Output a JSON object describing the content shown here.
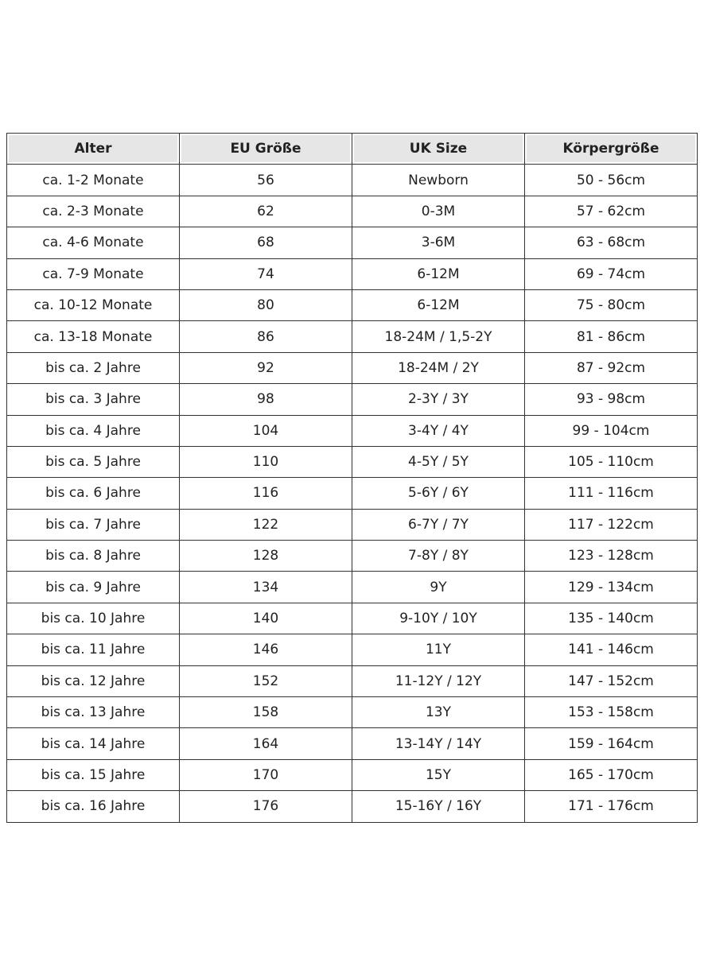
{
  "table": {
    "header": [
      "Alter",
      "EU Größe",
      "UK Size",
      "Körpergröße"
    ],
    "rows": [
      [
        "ca. 1-2 Monate",
        "56",
        "Newborn",
        "50 - 56cm"
      ],
      [
        "ca. 2-3 Monate",
        "62",
        "0-3M",
        "57 - 62cm"
      ],
      [
        "ca. 4-6 Monate",
        "68",
        "3-6M",
        "63 - 68cm"
      ],
      [
        "ca. 7-9 Monate",
        "74",
        "6-12M",
        "69 - 74cm"
      ],
      [
        "ca. 10-12 Monate",
        "80",
        "6-12M",
        "75 - 80cm"
      ],
      [
        "ca. 13-18 Monate",
        "86",
        "18-24M / 1,5-2Y",
        "81 - 86cm"
      ],
      [
        "bis ca. 2 Jahre",
        "92",
        "18-24M / 2Y",
        "87 - 92cm"
      ],
      [
        "bis ca. 3 Jahre",
        "98",
        "2-3Y / 3Y",
        "93 - 98cm"
      ],
      [
        "bis ca. 4 Jahre",
        "104",
        "3-4Y / 4Y",
        "99 - 104cm"
      ],
      [
        "bis ca. 5 Jahre",
        "110",
        "4-5Y / 5Y",
        "105 - 110cm"
      ],
      [
        "bis ca. 6 Jahre",
        "116",
        "5-6Y / 6Y",
        "111 - 116cm"
      ],
      [
        "bis ca. 7 Jahre",
        "122",
        "6-7Y / 7Y",
        "117 - 122cm"
      ],
      [
        "bis ca. 8 Jahre",
        "128",
        "7-8Y / 8Y",
        "123 - 128cm"
      ],
      [
        "bis ca. 9 Jahre",
        "134",
        "9Y",
        "129 - 134cm"
      ],
      [
        "bis ca. 10 Jahre",
        "140",
        "9-10Y / 10Y",
        "135 - 140cm"
      ],
      [
        "bis ca. 11 Jahre",
        "146",
        "11Y",
        "141 - 146cm"
      ],
      [
        "bis ca. 12 Jahre",
        "152",
        "11-12Y / 12Y",
        "147 - 152cm"
      ],
      [
        "bis ca. 13 Jahre",
        "158",
        "13Y",
        "153 - 158cm"
      ],
      [
        "bis ca. 14 Jahre",
        "164",
        "13-14Y / 14Y",
        "159 - 164cm"
      ],
      [
        "bis ca. 15 Jahre",
        "170",
        "15Y",
        "165 - 170cm"
      ],
      [
        "bis ca. 16 Jahre",
        "176",
        "15-16Y / 16Y",
        "171 - 176cm"
      ]
    ]
  }
}
